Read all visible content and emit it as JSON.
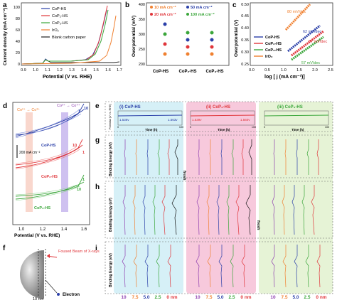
{
  "panel_a": {
    "letter": "a",
    "xlabel": "Potential (V vs. RHE)",
    "ylabel": "Current density (mA cm⁻²)",
    "xticks": [
      "0.9",
      "1.0",
      "1.1",
      "1.2",
      "1.3",
      "1.4",
      "1.5",
      "1.6",
      "1.7"
    ],
    "yticks": [
      "0",
      "20",
      "40",
      "60",
      "80",
      "100"
    ],
    "legend": [
      {
        "name": "CoP-HS",
        "color": "#2a3fa8"
      },
      {
        "name": "CoP₂-HS",
        "color": "#e0353a"
      },
      {
        "name": "CoP₃-HS",
        "color": "#3aa63a"
      },
      {
        "name": "IrO₂",
        "color": "#f08030"
      },
      {
        "name": "Blank carbon paper",
        "color": "#222222"
      }
    ]
  },
  "panel_b": {
    "letter": "b",
    "ylabel": "Overpotential (mV)",
    "yticks": [
      "200",
      "250",
      "300",
      "350",
      "400"
    ],
    "categories": [
      "CoP-HS",
      "CoP₂-HS",
      "CoP₃-HS"
    ],
    "legend": [
      {
        "name": "10 mA cm⁻²",
        "color": "#f08030"
      },
      {
        "name": "50 mA cm⁻²",
        "color": "#2a3fa8"
      },
      {
        "name": "20 mA cm⁻²",
        "color": "#e0353a"
      },
      {
        "name": "100 mA cm⁻²",
        "color": "#3aa63a"
      }
    ]
  },
  "panel_c": {
    "letter": "c",
    "xlabel": "log [ j (mA cm⁻²)]",
    "ylabel": "Overpotential (V)",
    "xticks": [
      "0.0",
      "0.5",
      "1.0",
      "1.5",
      "2.0",
      "2.5"
    ],
    "yticks": [
      "0.25",
      "0.30",
      "0.35",
      "0.40",
      "0.45",
      "0.50"
    ],
    "annotations": [
      "80 mV/dec",
      "62 mV/dec",
      "57 mV/dec",
      "57 mV/dec"
    ],
    "legend": [
      {
        "name": "CoP-HS",
        "color": "#2a3fa8"
      },
      {
        "name": "CoP₂-HS",
        "color": "#e0353a"
      },
      {
        "name": "CoP₃-HS",
        "color": "#3aa63a"
      },
      {
        "name": "IrO₂",
        "color": "#f08030"
      }
    ]
  },
  "panel_d": {
    "letter": "d",
    "xlabel": "Potential (V vs. RHE)",
    "xticks": [
      "1.0",
      "1.2",
      "1.4",
      "1.6"
    ],
    "scale_label": "200 mA cm⁻²",
    "label_co2_co3": "Co²⁺ → Co³⁺",
    "label_co3_co4": "Co³⁺ → Co⁴⁺",
    "curves": [
      "CoP-HS",
      "CoP₂-HS",
      "CoP₃-HS"
    ],
    "cycle_first": "1",
    "cycle_last": "10"
  },
  "panel_e": {
    "letter": "e",
    "ylabel": "Potential (V vs. RHE)",
    "xlabel": "Time (h)",
    "sub": [
      {
        "title": "(i) CoP-HS",
        "start": "1.536v",
        "end": "1.563v",
        "bg": "#d6f0f7"
      },
      {
        "title": "(ii) CoP₂-HS",
        "start": "1.539v",
        "end": "1.560v",
        "bg": "#f7c9dc"
      },
      {
        "title": "(iii) CoP₃-HS",
        "start": "",
        "end": "",
        "bg": "#e6f3d6"
      }
    ],
    "xticks": [
      "0",
      "20",
      "40",
      "60",
      "80",
      "100"
    ]
  },
  "panel_f": {
    "letter": "f",
    "beam_label": "Foused Beam of X-rays",
    "electron_label": "Electron",
    "depth_label": "10 nm"
  },
  "panel_g": {
    "letter": "g",
    "ylabel": "Binding Energy (eV)",
    "fresh": "fresh"
  },
  "panel_h": {
    "letter": "h",
    "ylabel": "Binding Energy (eV)",
    "fresh": "fresh"
  },
  "panel_i": {
    "letter": "i",
    "ylabel": "Binding Energy (eV)",
    "depth_labels": [
      {
        "text": "10",
        "color": "#8e3fb0"
      },
      {
        "text": "7.5",
        "color": "#f08030"
      },
      {
        "text": "5.0",
        "color": "#2a3fa8"
      },
      {
        "text": "2.5",
        "color": "#3aa63a"
      },
      {
        "text": "0 nm",
        "color": "#e0353a"
      }
    ]
  },
  "colors": {
    "cop": "#2a3fa8",
    "cop2": "#e0353a",
    "cop3": "#3aa63a",
    "iro2": "#f08030",
    "blank": "#222222"
  }
}
